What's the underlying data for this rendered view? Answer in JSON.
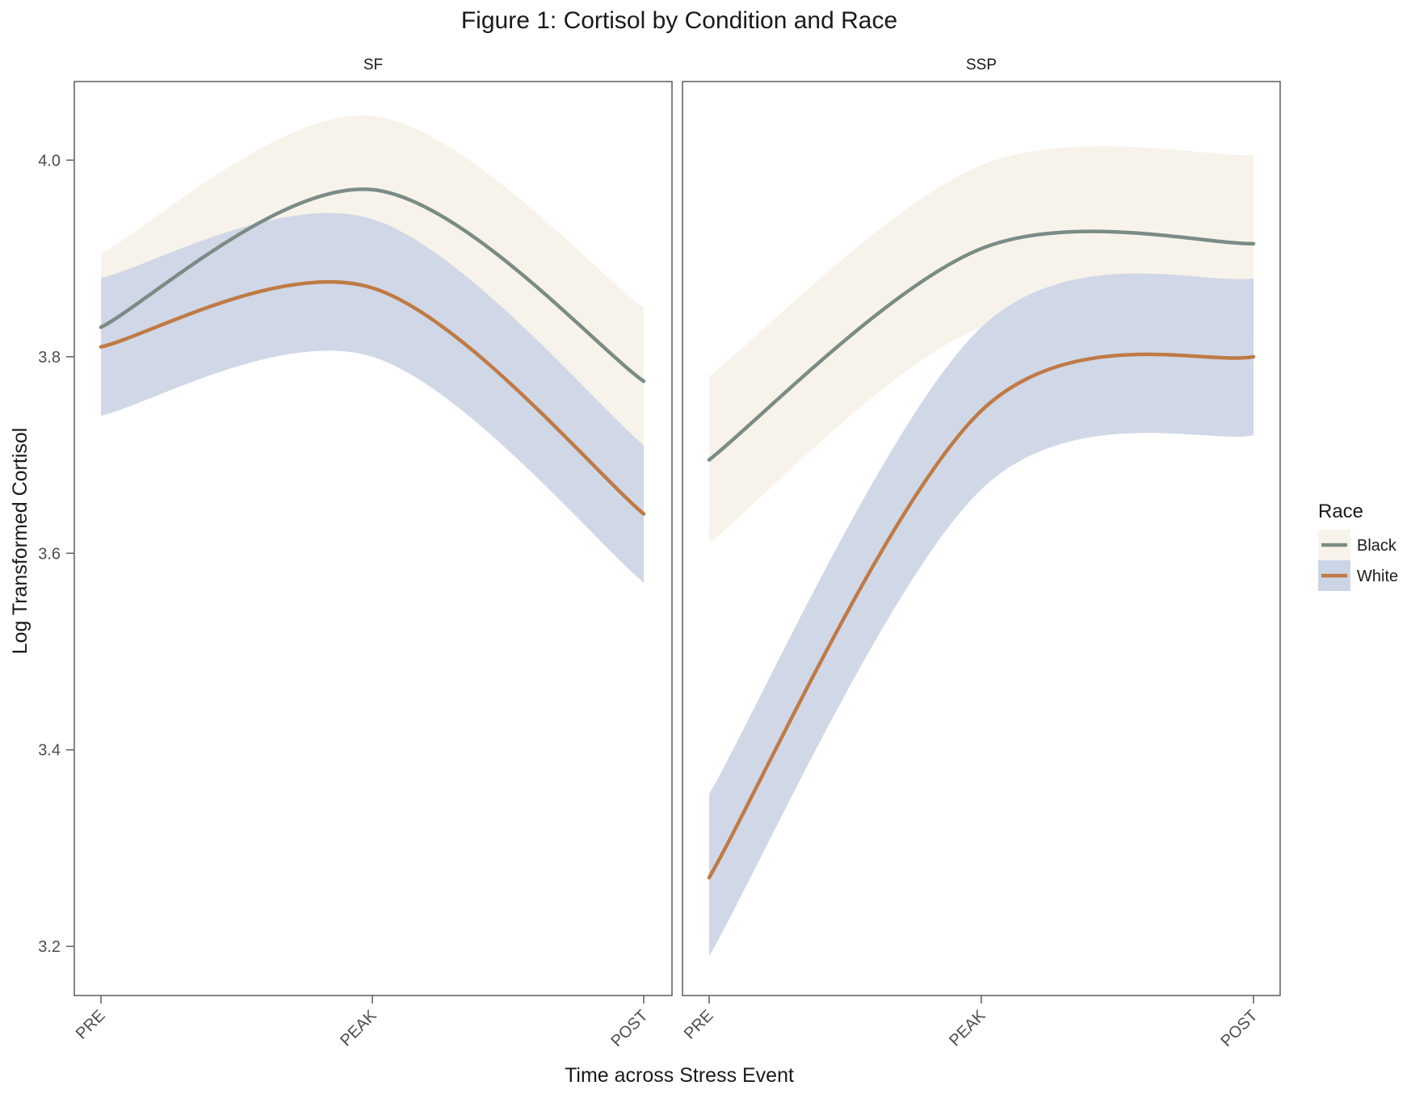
{
  "chart_data": {
    "type": "line",
    "title": "Figure 1: Cortisol by Condition and Race",
    "xlabel": "Time across Stress Event",
    "ylabel": "Log Transformed Cortisol",
    "categories": [
      "PRE",
      "PEAK",
      "POST"
    ],
    "ylim": [
      3.15,
      4.08
    ],
    "yticks": [
      "3.2",
      "3.4",
      "3.6",
      "3.8",
      "4.0"
    ],
    "grid": false,
    "legend": {
      "title": "Race",
      "position": "right",
      "entries": [
        "Black",
        "White"
      ]
    },
    "colors": {
      "Black_line": "#7a8c85",
      "White_line": "#c07a45",
      "Black_band": "#f8f3ea",
      "White_band": "#ccd5e5",
      "overlap_band": "#d4d5dc"
    },
    "panels": [
      {
        "label": "SF",
        "series": [
          {
            "name": "Black",
            "values": [
              3.83,
              3.97,
              3.775
            ],
            "lower": [
              3.755,
              3.895,
              3.7
            ],
            "upper": [
              3.905,
              4.045,
              3.85
            ]
          },
          {
            "name": "White",
            "values": [
              3.81,
              3.87,
              3.64
            ],
            "lower": [
              3.74,
              3.8,
              3.57
            ],
            "upper": [
              3.88,
              3.94,
              3.71
            ]
          }
        ]
      },
      {
        "label": "SSP",
        "series": [
          {
            "name": "Black",
            "values": [
              3.695,
              3.91,
              3.915
            ],
            "lower": [
              3.61,
              3.83,
              3.825
            ],
            "upper": [
              3.78,
              3.995,
              4.005
            ]
          },
          {
            "name": "White",
            "values": [
              3.27,
              3.745,
              3.8
            ],
            "lower": [
              3.19,
              3.665,
              3.72
            ],
            "upper": [
              3.355,
              3.83,
              3.88
            ]
          }
        ]
      }
    ]
  }
}
